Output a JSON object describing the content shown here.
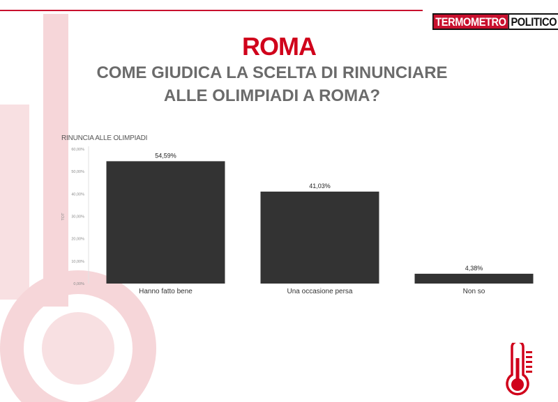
{
  "header": {
    "logo_part1": "TERMOMETRO",
    "logo_part2": "POLITICO",
    "city": "ROMA",
    "question_line1": "COME GIUDICA LA SCELTA DI RINUNCIARE",
    "question_line2": "ALLE OLIMPIADI A ROMA?"
  },
  "colors": {
    "accent": "#d0021b",
    "bar": "#333333",
    "question": "#6b6b6b"
  },
  "chart_data": {
    "type": "bar",
    "title": "RINUNCIA ALLE OLIMPIADI",
    "ylabel": "TOT",
    "xlabel": "",
    "categories": [
      "Hanno fatto bene",
      "Una occasione persa",
      "Non so"
    ],
    "values": [
      54.59,
      41.03,
      4.38
    ],
    "value_labels": [
      "54,59%",
      "41,03%",
      "4,38%"
    ],
    "ylim": [
      0,
      60
    ],
    "yticks": [
      0,
      10,
      20,
      30,
      40,
      50,
      60
    ],
    "ytick_labels": [
      "0,00%",
      "10,00%",
      "20,00%",
      "30,00%",
      "40,00%",
      "50,00%",
      "60,00%"
    ],
    "grid": false,
    "legend": "none"
  },
  "icons": [
    "thermometer-icon"
  ]
}
